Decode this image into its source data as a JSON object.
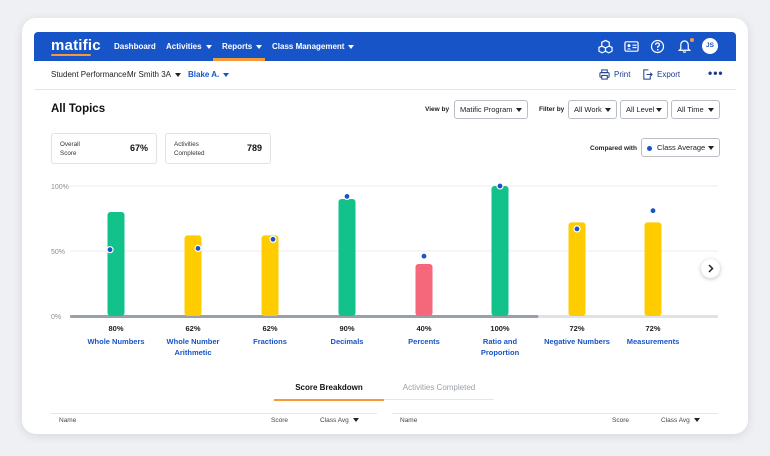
{
  "topbar": {
    "logo": "matific",
    "nav": [
      {
        "label": "Dashboard",
        "has_menu": false,
        "active": false
      },
      {
        "label": "Activities",
        "has_menu": true,
        "active": false
      },
      {
        "label": "Reports",
        "has_menu": true,
        "active": true
      },
      {
        "label": "Class Management",
        "has_menu": true,
        "active": false
      }
    ],
    "icons": [
      "cubes-icon",
      "id-card-icon",
      "help-icon",
      "bell-icon"
    ],
    "avatar_initials": "JS"
  },
  "subbar": {
    "label": "Student Performance:",
    "class_select": "Mr Smith 3A",
    "student_select": "Blake A.",
    "print": "Print",
    "export": "Export",
    "more": "•••"
  },
  "page": {
    "title": "All Topics",
    "view_by_label": "View by",
    "view_by_value": "Matific Program",
    "filter_by_label": "Filter by",
    "filter_work": "All Work",
    "filter_level": "All Level",
    "filter_time": "All Time"
  },
  "stats": {
    "overall_label_1": "Overall",
    "overall_label_2": "Score",
    "overall_value": "67%",
    "activities_label_1": "Activities",
    "activities_label_2": "Completed",
    "activities_value": "789"
  },
  "compare": {
    "label": "Compared with",
    "value": "Class Average"
  },
  "colors": {
    "brand": "#1754c8",
    "accent": "#f49a38",
    "high": "#12c28a",
    "mid": "#ffcc00",
    "low": "#f5677a",
    "class_avg_dot": "#1754c8"
  },
  "chart_data": {
    "type": "bar",
    "ylabels": [
      "100%",
      "50%",
      "0%"
    ],
    "ylim": [
      0,
      100
    ],
    "categories": [
      [
        "Whole Numbers"
      ],
      [
        "Whole Number",
        "Arithmetic"
      ],
      [
        "Fractions"
      ],
      [
        "Decimals"
      ],
      [
        "Percents"
      ],
      [
        "Ratio and",
        "Proportion"
      ],
      [
        "Negative Numbers"
      ],
      [
        "Measurements"
      ]
    ],
    "value_labels": [
      "80%",
      "62%",
      "62%",
      "90%",
      "40%",
      "100%",
      "72%",
      "72%"
    ],
    "series": [
      {
        "values": [
          80,
          62,
          62,
          90,
          40,
          100,
          72,
          72
        ],
        "colors": [
          "high",
          "mid",
          "mid",
          "high",
          "low",
          "high",
          "mid",
          "mid"
        ]
      },
      {
        "name": "Class Average",
        "values": [
          51,
          52,
          59,
          92,
          46,
          100,
          67,
          81
        ]
      }
    ]
  },
  "tabs": {
    "score_breakdown": "Score Breakdown",
    "activities_completed": "Activities Completed"
  },
  "table": {
    "name": "Name",
    "score": "Score",
    "class_avg": "Class Avg"
  }
}
